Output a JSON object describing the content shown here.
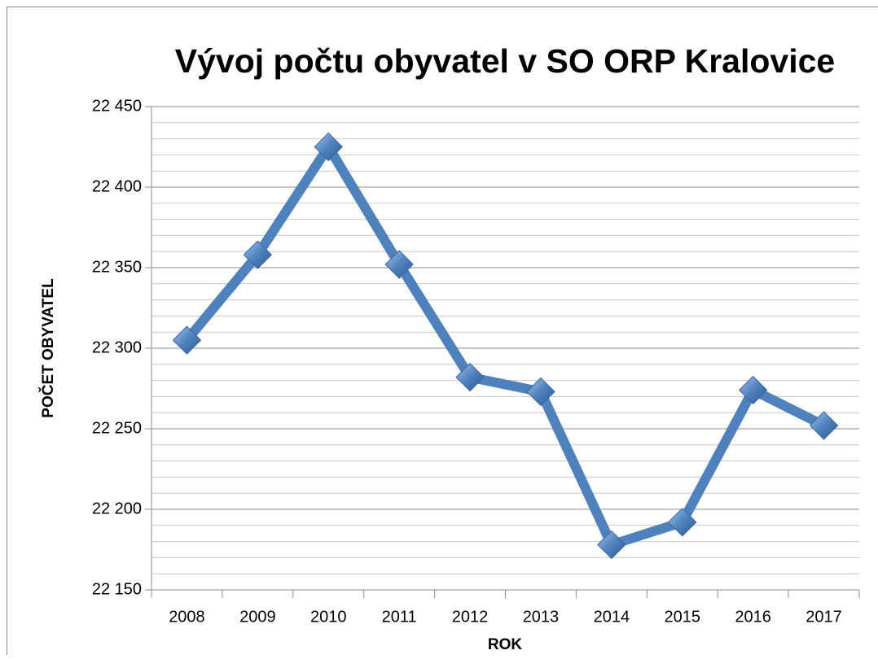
{
  "chart_data": {
    "type": "line",
    "title": "Vývoj počtu obyvatel v SO ORP Kralovice",
    "x_label": "ROK",
    "y_label": "POČET OBYVATEL",
    "categories": [
      "2008",
      "2009",
      "2010",
      "2011",
      "2012",
      "2013",
      "2014",
      "2015",
      "2016",
      "2017"
    ],
    "series": [
      {
        "name": "Počet obyvatel",
        "color": "#4f81bd",
        "values": [
          22305,
          22358,
          22425,
          22352,
          22282,
          22273,
          22178,
          22192,
          22274,
          22252
        ]
      }
    ],
    "ylim": [
      22150,
      22450
    ],
    "yticks": [
      {
        "value": 22150,
        "label": "22 150"
      },
      {
        "value": 22200,
        "label": "22 200"
      },
      {
        "value": 22250,
        "label": "22 250"
      },
      {
        "value": 22300,
        "label": "22 300"
      },
      {
        "value": 22350,
        "label": "22 350"
      },
      {
        "value": 22400,
        "label": "22 400"
      },
      {
        "value": 22450,
        "label": "22 450"
      }
    ],
    "yminorticks": [
      22160,
      22170,
      22180,
      22190,
      22210,
      22220,
      22230,
      22240,
      22260,
      22270,
      22280,
      22290,
      22310,
      22320,
      22330,
      22340,
      22360,
      22370,
      22380,
      22390,
      22410,
      22420,
      22430,
      22440
    ],
    "grid": true
  }
}
